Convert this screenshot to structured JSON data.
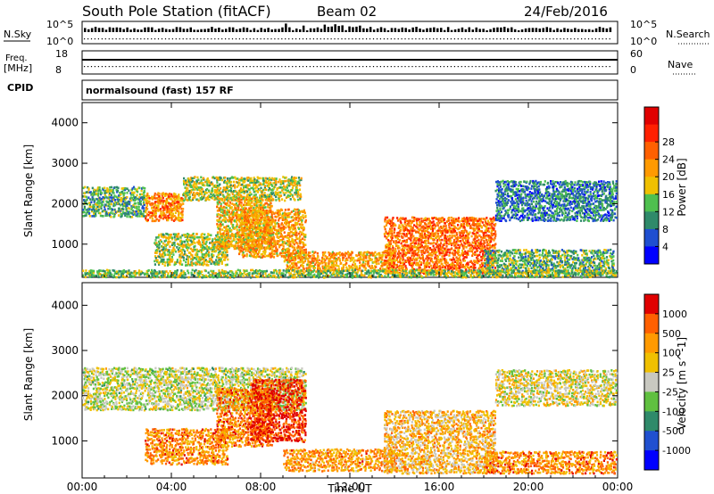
{
  "header": {
    "station": "South Pole Station (fitACF)",
    "beam": "Beam 02",
    "date": "24/Feb/2016"
  },
  "strips": {
    "nsky": {
      "label": "N.Sky",
      "top_tick": "10^5",
      "bottom_tick": "10^0"
    },
    "nsearch": {
      "label": "N.Search",
      "top_tick": "10^5",
      "bottom_tick": "10^0"
    },
    "freq": {
      "label_line1": "Freq.",
      "label_line2": "[MHz]",
      "top_tick": "18",
      "bottom_tick": "8"
    },
    "nave": {
      "label": "Nave",
      "top_tick": "60",
      "bottom_tick": "0"
    },
    "cpid": {
      "label": "CPID",
      "value": "normalsound (fast) 157 RF"
    }
  },
  "chart_data": [
    {
      "type": "heatmap",
      "name": "power",
      "ylabel": "Slant Range [km]",
      "xlabel": "Time UT",
      "x_ticks": [
        "00:00",
        "04:00",
        "08:00",
        "12:00",
        "16:00",
        "20:00",
        "00:00"
      ],
      "y_ticks": [
        1000,
        2000,
        3000,
        4000
      ],
      "xlim_hours": [
        0,
        24
      ],
      "ylim_km": [
        180,
        4500
      ],
      "colorbar": {
        "label": "Power [dB]",
        "ticks": [
          "4",
          "8",
          "12",
          "16",
          "20",
          "24",
          "28"
        ],
        "colors": [
          "#0000ff",
          "#1f4fd0",
          "#2f8a6a",
          "#4fc04f",
          "#f0c000",
          "#ff9a00",
          "#ff6000",
          "#ff2000",
          "#e00000"
        ]
      },
      "regions": [
        {
          "t0": 0.0,
          "t1": 2.8,
          "r0": 1700,
          "r1": 2450,
          "level": 0.35
        },
        {
          "t0": 2.8,
          "t1": 4.5,
          "r0": 1600,
          "r1": 2300,
          "level": 0.65
        },
        {
          "t0": 4.5,
          "t1": 9.8,
          "r0": 2100,
          "r1": 2700,
          "level": 0.45
        },
        {
          "t0": 3.2,
          "t1": 6.5,
          "r0": 500,
          "r1": 1300,
          "level": 0.45
        },
        {
          "t0": 6.0,
          "t1": 8.5,
          "r0": 900,
          "r1": 2200,
          "level": 0.55
        },
        {
          "t0": 7.0,
          "t1": 10.0,
          "r0": 700,
          "r1": 1900,
          "level": 0.6
        },
        {
          "t0": 9.0,
          "t1": 14.0,
          "r0": 350,
          "r1": 850,
          "level": 0.6
        },
        {
          "t0": 13.5,
          "t1": 18.5,
          "r0": 300,
          "r1": 1700,
          "level": 0.7
        },
        {
          "t0": 18.0,
          "t1": 23.8,
          "r0": 300,
          "r1": 900,
          "level": 0.35
        },
        {
          "t0": 18.5,
          "t1": 24.0,
          "r0": 1600,
          "r1": 2600,
          "level": 0.25
        },
        {
          "t0": 0.0,
          "t1": 24.0,
          "r0": 180,
          "r1": 400,
          "level": 0.4
        }
      ]
    },
    {
      "type": "heatmap",
      "name": "velocity",
      "ylabel": "Slant Range [km]",
      "xlabel": "Time UT",
      "x_ticks": [
        "00:00",
        "04:00",
        "08:00",
        "12:00",
        "16:00",
        "20:00",
        "00:00"
      ],
      "y_ticks": [
        1000,
        2000,
        3000,
        4000
      ],
      "xlim_hours": [
        0,
        24
      ],
      "ylim_km": [
        180,
        4500
      ],
      "colorbar": {
        "label": "Velocity [m s^-1]",
        "ticks": [
          "1000",
          "500",
          "100",
          "25",
          "-25",
          "-100",
          "-500",
          "-1000"
        ],
        "colors": [
          "#0000ff",
          "#2050d0",
          "#2f8a6a",
          "#60c040",
          "#c8c8c0",
          "#f0c000",
          "#ff9a00",
          "#ff6000",
          "#e00000"
        ]
      },
      "regions": [
        {
          "t0": 0.0,
          "t1": 10.0,
          "r0": 1700,
          "r1": 2650,
          "level": 0.5
        },
        {
          "t0": 2.8,
          "t1": 6.5,
          "r0": 500,
          "r1": 1300,
          "level": 0.75
        },
        {
          "t0": 6.0,
          "t1": 8.5,
          "r0": 900,
          "r1": 2200,
          "level": 0.78
        },
        {
          "t0": 7.5,
          "t1": 10.0,
          "r0": 1000,
          "r1": 2400,
          "level": 0.9
        },
        {
          "t0": 9.0,
          "t1": 14.0,
          "r0": 350,
          "r1": 850,
          "level": 0.72
        },
        {
          "t0": 13.5,
          "t1": 18.5,
          "r0": 300,
          "r1": 1700,
          "level": 0.65
        },
        {
          "t0": 18.0,
          "t1": 24.0,
          "r0": 300,
          "r1": 800,
          "level": 0.75
        },
        {
          "t0": 18.5,
          "t1": 24.0,
          "r0": 1800,
          "r1": 2600,
          "level": 0.55
        }
      ]
    }
  ]
}
